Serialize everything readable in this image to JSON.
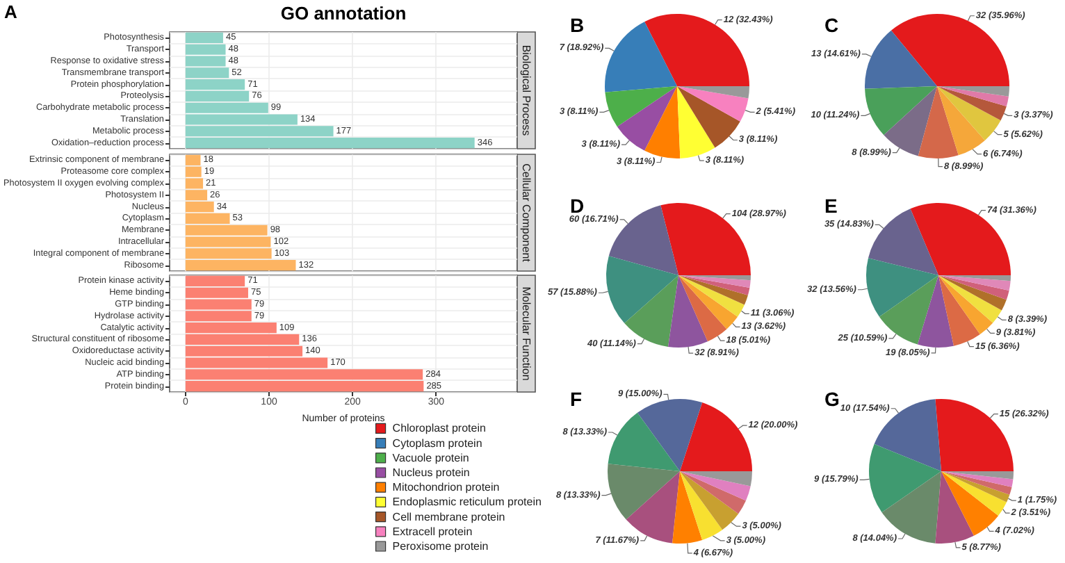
{
  "chart_data": [
    {
      "type": "bar",
      "orientation": "horizontal",
      "title": "Biological Process",
      "annotations": [
        "A",
        "GO annotation"
      ],
      "categories": [
        "Photosynthesis",
        "Transport",
        "Response to oxidative stress",
        "Transmembrane transport",
        "Protein phosphorylation",
        "Proteolysis",
        "Carbohydrate metabolic process",
        "Translation",
        "Metabolic process",
        "Oxidation–reduction process"
      ],
      "values": [
        45,
        48,
        48,
        52,
        71,
        76,
        99,
        134,
        177,
        346
      ],
      "color": "#8dd3c7",
      "data_labels": true,
      "xlim": [
        -19,
        397
      ],
      "xticks": [
        0,
        100,
        200,
        300
      ],
      "grid": true,
      "tick_labels": "y"
    },
    {
      "type": "bar",
      "orientation": "horizontal",
      "title": "Cellular Component",
      "categories": [
        "Extrinsic component of membrane",
        "Proteasome core complex",
        "Photosystem II oxygen evolving complex",
        "Photosystem II",
        "Nucleus",
        "Cytoplasm",
        "Membrane",
        "Intracellular",
        "Integral component of membrane",
        "Ribosome"
      ],
      "values": [
        18,
        19,
        21,
        26,
        34,
        53,
        98,
        102,
        103,
        132
      ],
      "color": "#fdb462",
      "data_labels": true,
      "xlim": [
        -19,
        397
      ],
      "xticks": [
        0,
        100,
        200,
        300
      ],
      "grid": true,
      "tick_labels": "y"
    },
    {
      "type": "bar",
      "orientation": "horizontal",
      "title": "Molecular Function",
      "xlabel": "Number of proteins",
      "categories": [
        "Protein kinase activity",
        "Heme binding",
        "GTP binding",
        "Hydrolase activity",
        "Catalytic activity",
        "Structural constituent of ribosome",
        "Oxidoreductase activity",
        "Nucleic acid binding",
        "ATP binding",
        "Protein binding"
      ],
      "values": [
        71,
        75,
        79,
        79,
        109,
        136,
        140,
        170,
        284,
        285
      ],
      "color": "#fb8072",
      "data_labels": true,
      "xlim": [
        -19,
        397
      ],
      "xticks": [
        0,
        100,
        200,
        300
      ],
      "grid": true
    },
    {
      "type": "pie",
      "title": "B",
      "legend": "bottom left",
      "categories": [
        "Chloroplast protein",
        "Cytoplasm protein",
        "Vacuole protein",
        "Nucleus protein",
        "Mitochondrion protein",
        "Endoplasmic reticulum protein",
        "Cell membrane protein",
        "Extracell protein",
        "Peroxisome protein"
      ],
      "values": [
        12,
        7,
        3,
        3,
        3,
        3,
        3,
        2,
        1
      ],
      "colors": [
        "#e41a1c",
        "#377eb8",
        "#4daf4a",
        "#984ea3",
        "#ff7f00",
        "#ffff33",
        "#a65628",
        "#f781bf",
        "#999999"
      ],
      "value_labels": [
        "12 (32.43%)",
        "7 (18.92%)",
        "3 (8.11%)",
        "3 (8.11%)",
        "3 (8.11%)",
        "3 (8.11%)",
        "3 (8.11%)",
        "2 (5.41%)",
        null
      ]
    },
    {
      "type": "pie",
      "title": "C",
      "categories": [
        null,
        null,
        null,
        null,
        null,
        null,
        null,
        null,
        null,
        null
      ],
      "values": [
        32,
        13,
        10,
        8,
        8,
        6,
        5,
        3,
        2,
        2
      ],
      "colors": [
        "#e41a1c",
        "#4a6fa5",
        "#4aa05a",
        "#7b6c88",
        "#d4684a",
        "#f5a73a",
        "#e0c63f",
        "#b5583b",
        "#e07aa8",
        "#999999"
      ],
      "value_labels": [
        "32 (35.96%)",
        "13 (14.61%)",
        "10 (11.24%)",
        "8 (8.99%)",
        "8 (8.99%)",
        "6 (6.74%)",
        "5 (5.62%)",
        "3 (3.37%)",
        null,
        null
      ]
    },
    {
      "type": "pie",
      "title": "D",
      "categories": [
        null,
        null,
        null,
        null,
        null,
        null,
        null,
        null,
        null,
        null,
        null,
        null
      ],
      "values": [
        104,
        60,
        57,
        40,
        32,
        18,
        13,
        11,
        8,
        6,
        6,
        4
      ],
      "colors": [
        "#e41a1c",
        "#69638e",
        "#3e9080",
        "#5a9e5a",
        "#8e559e",
        "#dc6a45",
        "#f8a530",
        "#f0e040",
        "#b0702a",
        "#d0607a",
        "#e088b8",
        "#999999"
      ],
      "value_labels": [
        "104 (28.97%)",
        "60 (16.71%)",
        "57 (15.88%)",
        "40 (11.14%)",
        "32 (8.91%)",
        "18 (5.01%)",
        "13 (3.62%)",
        "11 (3.06%)",
        null,
        null,
        null,
        null
      ]
    },
    {
      "type": "pie",
      "title": "E",
      "categories": [
        null,
        null,
        null,
        null,
        null,
        null,
        null,
        null,
        null,
        null,
        null,
        null
      ],
      "values": [
        74,
        35,
        32,
        25,
        19,
        15,
        9,
        8,
        6,
        5,
        5,
        3
      ],
      "colors": [
        "#e41a1c",
        "#69638e",
        "#3e9080",
        "#5a9e5a",
        "#8e559e",
        "#dc6a45",
        "#f8a530",
        "#f0e040",
        "#b0702a",
        "#d0607a",
        "#e088b8",
        "#999999"
      ],
      "value_labels": [
        "74 (31.36%)",
        "35 (14.83%)",
        "32 (13.56%)",
        "25 (10.59%)",
        "19 (8.05%)",
        "15 (6.36%)",
        "9 (3.81%)",
        "8 (3.39%)",
        null,
        null,
        null,
        null
      ]
    },
    {
      "type": "pie",
      "title": "F",
      "categories": [
        null,
        null,
        null,
        null,
        null,
        null,
        null,
        null,
        null,
        null,
        null
      ],
      "values": [
        12,
        9,
        8,
        8,
        7,
        4,
        3,
        3,
        2,
        2,
        2
      ],
      "colors": [
        "#e41a1c",
        "#55689a",
        "#3f9a70",
        "#6a8a6a",
        "#a8507e",
        "#ff8000",
        "#f8e030",
        "#c8a030",
        "#d06a6a",
        "#e080c0",
        "#999999"
      ],
      "value_labels": [
        "12 (20.00%)",
        "9 (15.00%)",
        "8 (13.33%)",
        "8 (13.33%)",
        "7 (11.67%)",
        "4 (6.67%)",
        "3 (5.00%)",
        "3 (5.00%)",
        null,
        null,
        null
      ]
    },
    {
      "type": "pie",
      "title": "G",
      "categories": [
        null,
        null,
        null,
        null,
        null,
        null,
        null,
        null,
        null,
        null,
        null
      ],
      "values": [
        15,
        10,
        9,
        8,
        5,
        4,
        2,
        1,
        1,
        1,
        1
      ],
      "colors": [
        "#e41a1c",
        "#55689a",
        "#3f9a70",
        "#6a8a6a",
        "#a8507e",
        "#ff8000",
        "#f8e030",
        "#c8a030",
        "#d06a6a",
        "#e080c0",
        "#999999"
      ],
      "value_labels": [
        "15 (26.32%)",
        "10 (17.54%)",
        "9 (15.79%)",
        "8 (14.04%)",
        "5 (8.77%)",
        "4 (7.02%)",
        "2 (3.51%)",
        "1 (1.75%)",
        null,
        null,
        null
      ]
    }
  ]
}
